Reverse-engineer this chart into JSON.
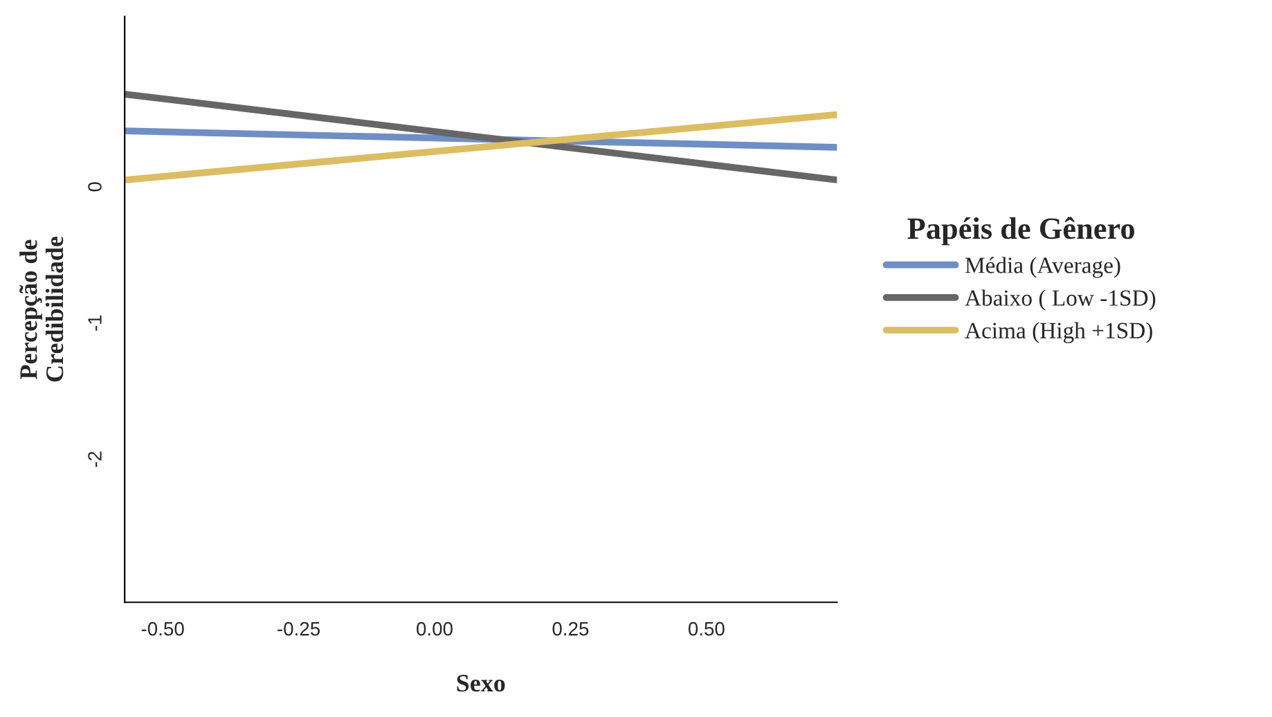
{
  "chart_data": {
    "type": "line",
    "xlabel": "Sexo",
    "ylabel": "Percepção de\nCredibilidade",
    "legend_title": "Papéis de Gênero",
    "x": [
      -0.57,
      0.74
    ],
    "series": [
      {
        "name": "Média (Average)",
        "color": "#6f8fc4",
        "values": [
          0.41,
          0.29
        ]
      },
      {
        "name": "Abaixo ( Low -1SD)",
        "color": "#666666",
        "values": [
          0.68,
          0.05
        ]
      },
      {
        "name": "Acima (High +1SD)",
        "color": "#dcbd63",
        "values": [
          0.05,
          0.53
        ]
      }
    ],
    "xlim": [
      -0.57,
      0.74
    ],
    "xticks": [
      {
        "value": -0.5,
        "label": "-0.50"
      },
      {
        "value": -0.25,
        "label": "-0.25"
      },
      {
        "value": 0,
        "label": "0.00"
      },
      {
        "value": 0.25,
        "label": "0.25"
      },
      {
        "value": 0.5,
        "label": "0.50"
      }
    ],
    "ylim": [
      -3.05,
      1.25
    ],
    "yticks": [
      0,
      -1,
      -2
    ],
    "grid": false,
    "legend": "right",
    "marker": "none",
    "line_style": "solid"
  }
}
